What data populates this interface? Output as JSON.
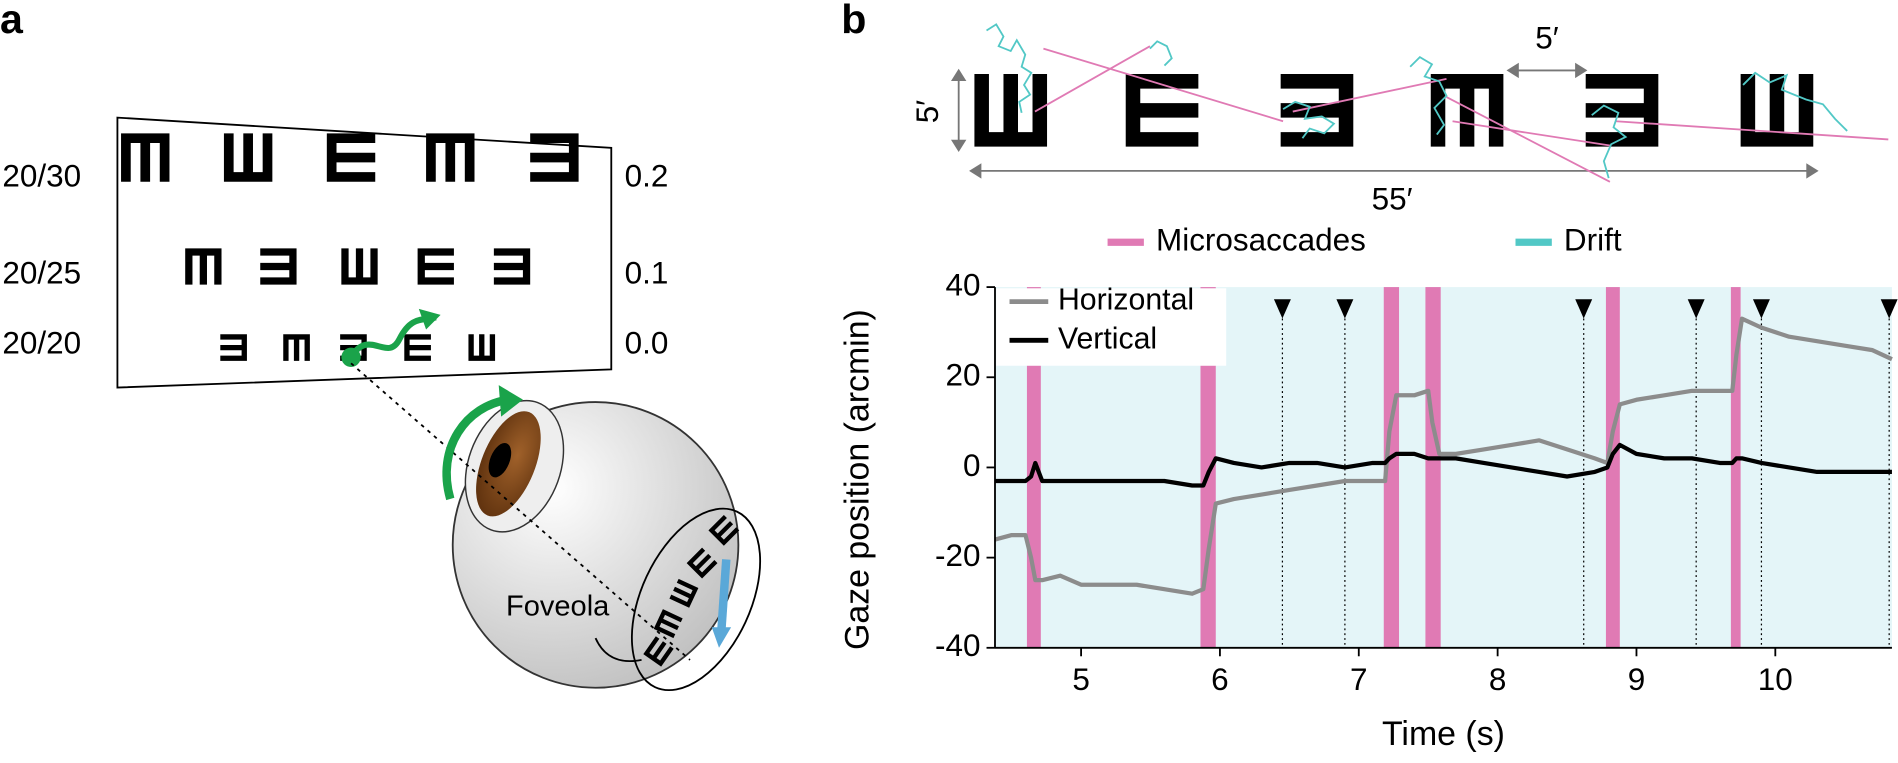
{
  "panel_a": {
    "label": "a",
    "rows": [
      {
        "snellen": "20/30",
        "logmar": "0.2"
      },
      {
        "snellen": "20/25",
        "logmar": "0.1"
      },
      {
        "snellen": "20/20",
        "logmar": "0.0"
      }
    ],
    "foveola": "Foveola"
  },
  "panel_b_top": {
    "label": "b",
    "height_label": "5′",
    "spacing_label": "5′",
    "width_label": "55′"
  },
  "chart_data": {
    "type": "line",
    "xlabel": "Time (s)",
    "ylabel": "Gaze position (arcmin)",
    "x": [
      4.38,
      4.5,
      4.6,
      4.64,
      4.67,
      4.72,
      4.85,
      5.0,
      5.2,
      5.4,
      5.6,
      5.8,
      5.88,
      5.92,
      5.97,
      6.1,
      6.3,
      6.5,
      6.7,
      6.9,
      7.1,
      7.19,
      7.22,
      7.27,
      7.4,
      7.5,
      7.53,
      7.58,
      7.7,
      7.9,
      8.1,
      8.3,
      8.5,
      8.7,
      8.79,
      8.83,
      8.88,
      9.0,
      9.2,
      9.4,
      9.6,
      9.69,
      9.72,
      9.76,
      9.9,
      10.1,
      10.3,
      10.5,
      10.7,
      10.84
    ],
    "series": [
      {
        "name": "Horizontal",
        "color": "#8c8c8c",
        "values": [
          -16,
          -15,
          -15,
          -20,
          -25,
          -25,
          -24,
          -26,
          -26,
          -26,
          -27,
          -28,
          -27,
          -18,
          -8,
          -7,
          -6,
          -5,
          -4,
          -3,
          -3,
          -3,
          8,
          16,
          16,
          17,
          10,
          3,
          3,
          4,
          5,
          6,
          4,
          2,
          1,
          8,
          14,
          15,
          16,
          17,
          17,
          17,
          25,
          33,
          31,
          29,
          28,
          27,
          26,
          24
        ]
      },
      {
        "name": "Vertical",
        "color": "#000000",
        "values": [
          -3,
          -3,
          -3,
          -2,
          1,
          -3,
          -3,
          -3,
          -3,
          -3,
          -3,
          -4,
          -4,
          -1,
          2,
          1,
          0,
          1,
          1,
          0,
          1,
          1,
          2,
          3,
          3,
          2,
          2,
          2,
          2,
          1,
          0,
          -1,
          -2,
          -1,
          0,
          3,
          5,
          3,
          2,
          2,
          1,
          1,
          2,
          2,
          1,
          0,
          -1,
          -1,
          -1,
          -1
        ]
      }
    ],
    "xlim": [
      4.38,
      10.84
    ],
    "ylim": [
      -40,
      40
    ],
    "xticks": [
      5,
      6,
      7,
      8,
      9,
      10
    ],
    "yticks": [
      40,
      20,
      0,
      -20,
      -40
    ],
    "legend": "upper left",
    "span_legend": [
      {
        "name": "Microsaccades",
        "color": "#e07ab4"
      },
      {
        "name": "Drift",
        "color": "#52c8c6"
      }
    ],
    "background_color": "#e4f5f8",
    "microsaccade_spans": [
      [
        4.61,
        4.71
      ],
      [
        5.86,
        5.97
      ],
      [
        7.18,
        7.29
      ],
      [
        7.48,
        7.59
      ],
      [
        8.78,
        8.88
      ],
      [
        9.68,
        9.75
      ]
    ],
    "markers_x": [
      6.45,
      6.9,
      8.62,
      9.43,
      9.9,
      10.82
    ]
  }
}
